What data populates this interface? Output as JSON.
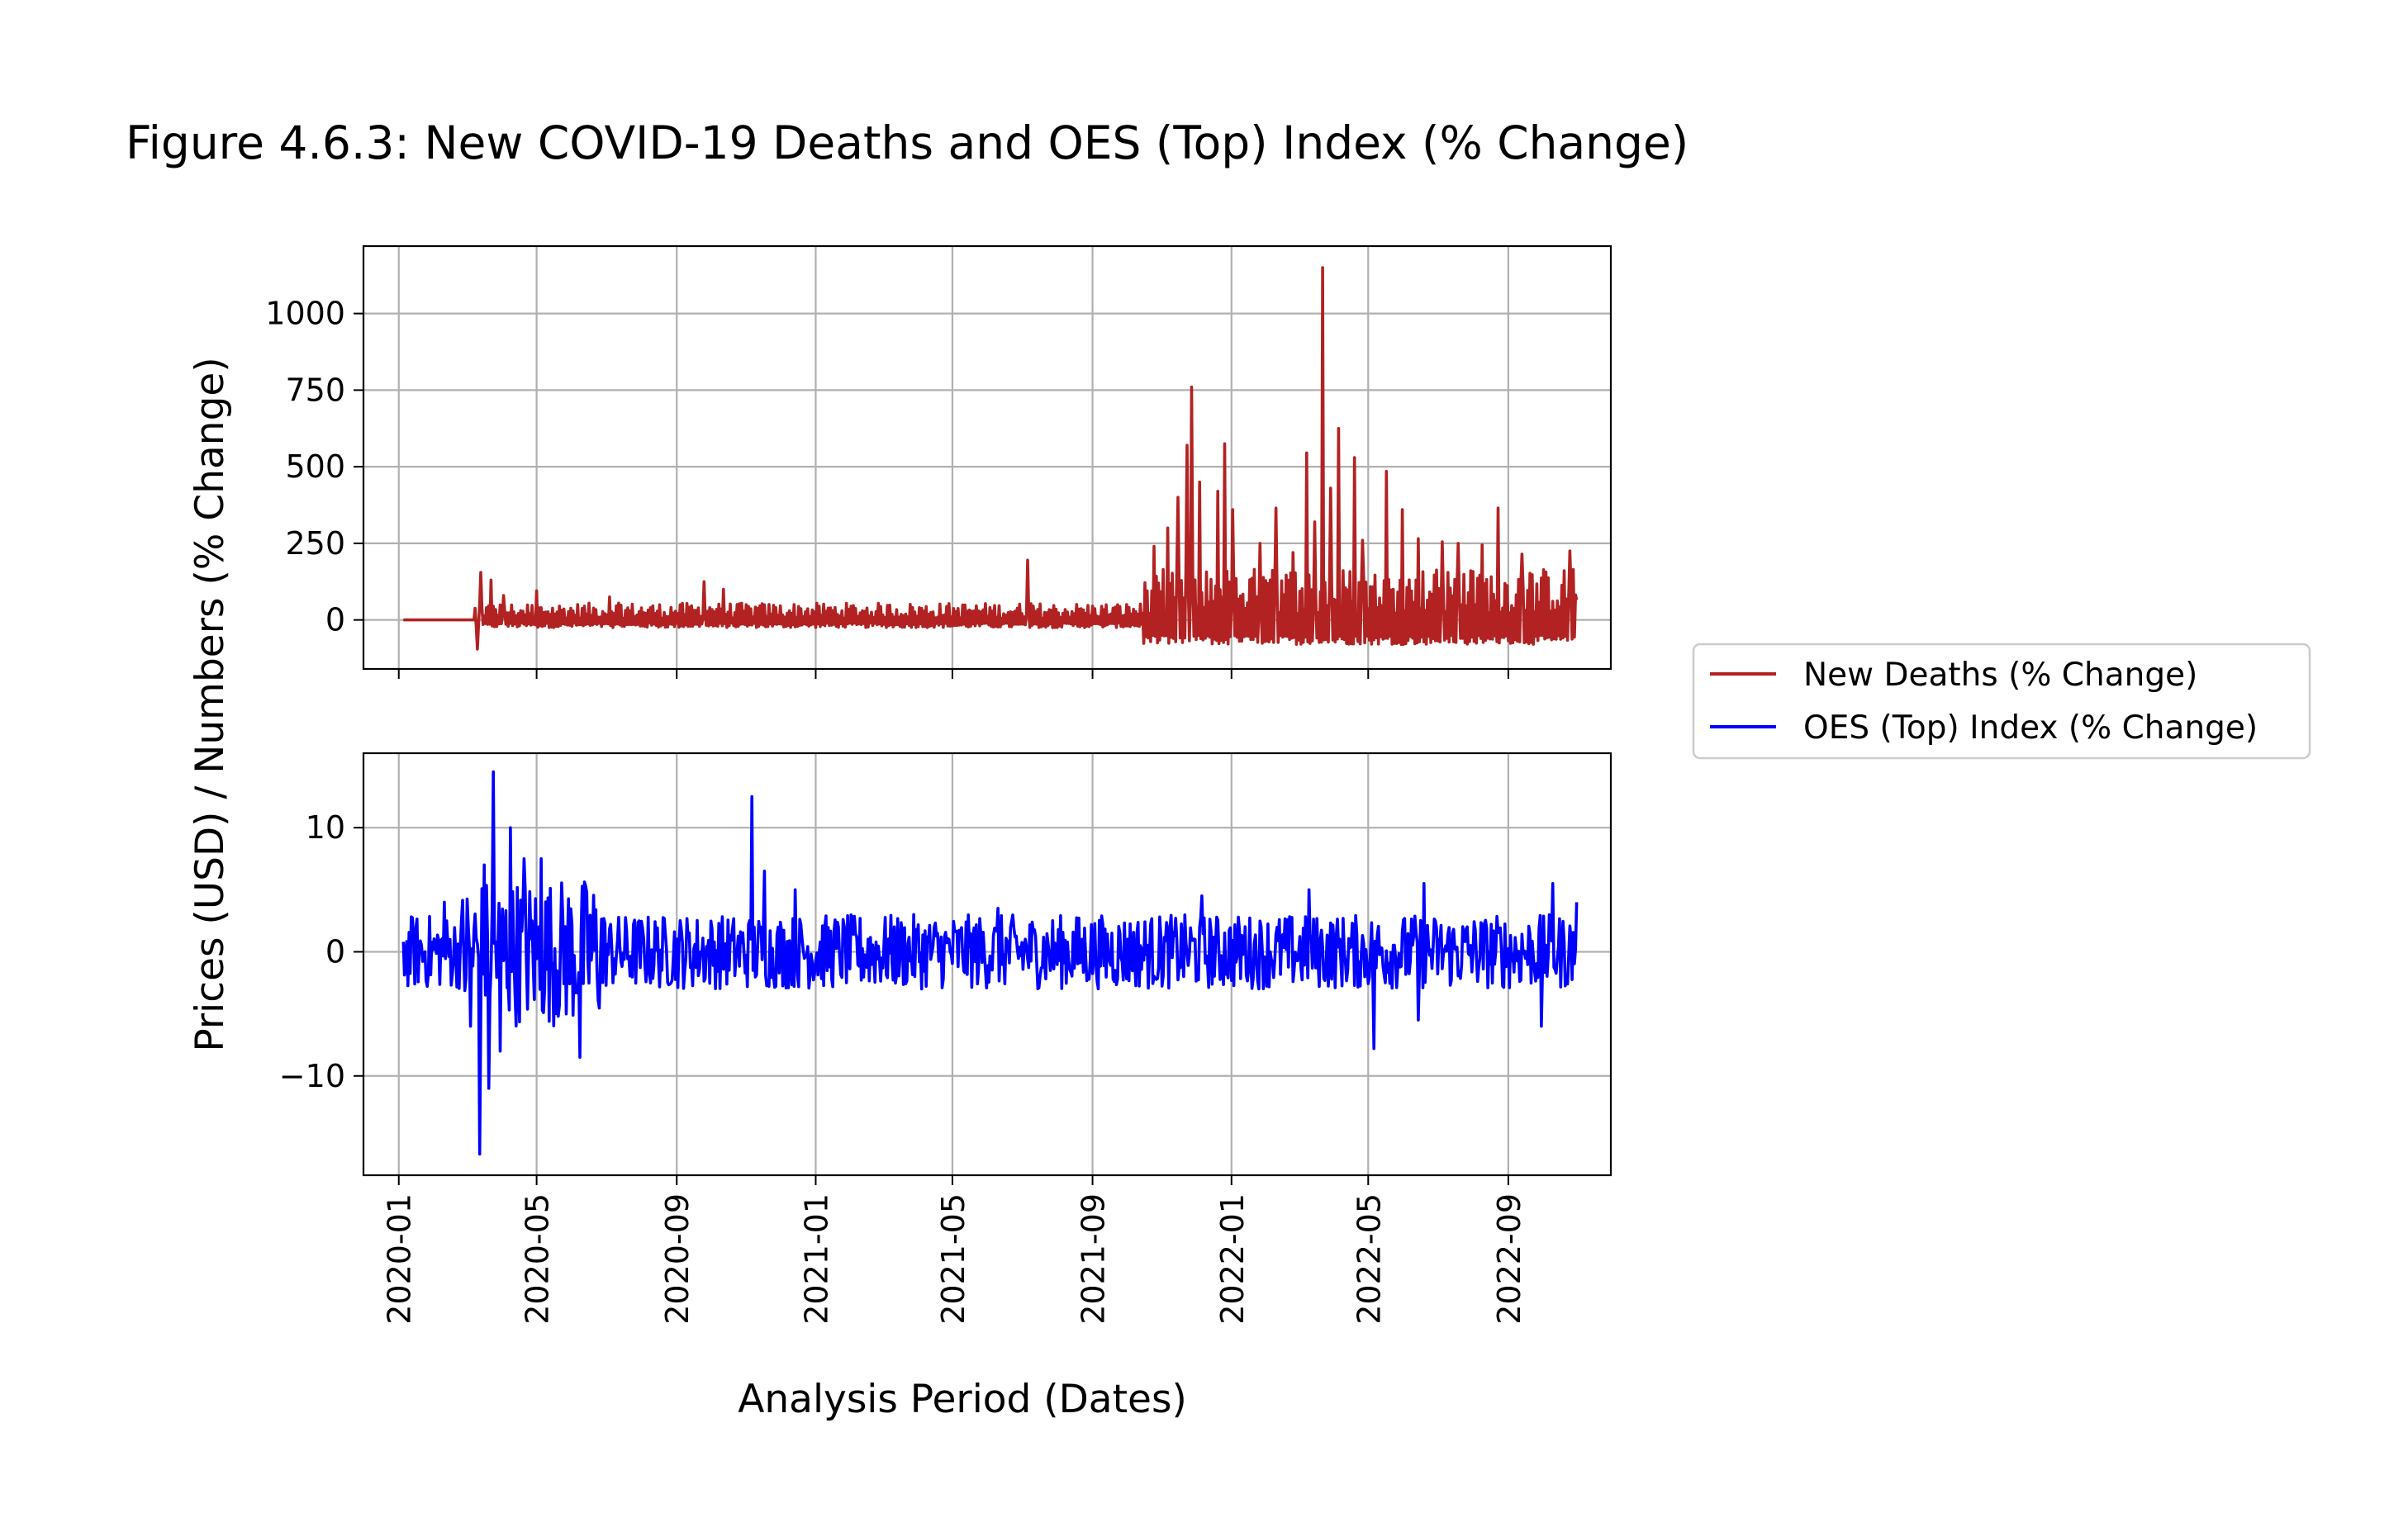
{
  "figure": {
    "title": "Figure 4.6.3: New COVID-19 Deaths and OES (Top) Index (% Change)",
    "xlabel": "Analysis Period (Dates)",
    "ylabel": "Prices (USD) / Numbers (% Change)"
  },
  "legend": {
    "placement": "right, centered between panels",
    "entries": [
      {
        "label": "New Deaths (% Change)",
        "color": "#b22222"
      },
      {
        "label": "OES (Top) Index (% Change)",
        "color": "#0000ff"
      }
    ]
  },
  "chart_data": [
    {
      "type": "line",
      "panel": "top",
      "series": [
        {
          "name": "New Deaths (% Change)",
          "color": "#b22222",
          "x_range": [
            "2020-01-05",
            "2022-10-31"
          ],
          "points": [
            [
              "2020-01-05",
              0
            ],
            [
              "2020-03-07",
              0
            ],
            [
              "2020-03-10",
              -95
            ],
            [
              "2020-03-13",
              155
            ],
            [
              "2020-03-18",
              40
            ],
            [
              "2020-03-22",
              130
            ],
            [
              "2020-04-02",
              80
            ],
            [
              "2020-05-01",
              95
            ],
            [
              "2020-07-04",
              75
            ],
            [
              "2020-09-25",
              125
            ],
            [
              "2020-10-12",
              100
            ],
            [
              "2021-07-06",
              195
            ],
            [
              "2021-10-25",
              240
            ],
            [
              "2021-11-06",
              300
            ],
            [
              "2021-11-15",
              400
            ],
            [
              "2021-11-23",
              570
            ],
            [
              "2021-11-27",
              760
            ],
            [
              "2021-12-04",
              450
            ],
            [
              "2021-12-20",
              420
            ],
            [
              "2021-12-26",
              575
            ],
            [
              "2022-01-02",
              360
            ],
            [
              "2022-01-26",
              250
            ],
            [
              "2022-02-09",
              365
            ],
            [
              "2022-02-24",
              220
            ],
            [
              "2022-03-08",
              545
            ],
            [
              "2022-03-15",
              320
            ],
            [
              "2022-03-22",
              1150
            ],
            [
              "2022-03-29",
              430
            ],
            [
              "2022-04-05",
              625
            ],
            [
              "2022-04-19",
              530
            ],
            [
              "2022-04-26",
              260
            ],
            [
              "2022-05-17",
              485
            ],
            [
              "2022-05-31",
              360
            ],
            [
              "2022-06-14",
              265
            ],
            [
              "2022-07-05",
              255
            ],
            [
              "2022-07-19",
              250
            ],
            [
              "2022-08-09",
              245
            ],
            [
              "2022-08-23",
              365
            ],
            [
              "2022-09-13",
              215
            ],
            [
              "2022-10-25",
              225
            ],
            [
              "2022-10-31",
              65
            ]
          ],
          "note_daily_oscillation": "values oscillate daily roughly between -20 and 40 through mid-2021, then between -90 and the listed peaks afterward"
        }
      ],
      "xlim": [
        "2019-12-01",
        "2022-11-30"
      ],
      "ylim": [
        -160,
        1220
      ],
      "yticks": [
        0,
        250,
        500,
        750,
        1000
      ],
      "ytick_labels": [
        "0",
        "250",
        "500",
        "750",
        "1000"
      ],
      "grid": true
    },
    {
      "type": "line",
      "panel": "bottom",
      "series": [
        {
          "name": "OES (Top) Index (% Change)",
          "color": "#0000ff",
          "x_range": [
            "2020-01-05",
            "2022-10-31"
          ],
          "points": [
            [
              "2020-01-05",
              0.8
            ],
            [
              "2020-02-10",
              4.0
            ],
            [
              "2020-03-04",
              -6.0
            ],
            [
              "2020-03-12",
              -16.3
            ],
            [
              "2020-03-16",
              7.0
            ],
            [
              "2020-03-20",
              -11.0
            ],
            [
              "2020-03-24",
              14.5
            ],
            [
              "2020-03-30",
              -8.0
            ],
            [
              "2020-04-08",
              10.0
            ],
            [
              "2020-04-20",
              7.5
            ],
            [
              "2020-05-05",
              7.5
            ],
            [
              "2020-06-08",
              -8.5
            ],
            [
              "2020-11-06",
              12.5
            ],
            [
              "2020-11-17",
              6.5
            ],
            [
              "2020-12-14",
              5.0
            ],
            [
              "2021-06-10",
              3.5
            ],
            [
              "2021-12-06",
              4.5
            ],
            [
              "2022-03-10",
              5.0
            ],
            [
              "2022-05-06",
              -7.8
            ],
            [
              "2022-06-14",
              -5.5
            ],
            [
              "2022-06-19",
              5.5
            ],
            [
              "2022-09-30",
              -6.0
            ],
            [
              "2022-10-10",
              5.5
            ],
            [
              "2022-10-31",
              4.0
            ]
          ],
          "note_daily_oscillation": "values oscillate daily roughly within ±3.5 outside the listed extremes"
        }
      ],
      "xlim": [
        "2019-12-01",
        "2022-11-30"
      ],
      "ylim": [
        -18,
        16
      ],
      "yticks": [
        -10,
        0,
        10
      ],
      "ytick_labels": [
        "−10",
        "0",
        "10"
      ],
      "grid": true
    }
  ],
  "xaxis": {
    "ticks": [
      "2020-01-01",
      "2020-05-01",
      "2020-09-01",
      "2021-01-01",
      "2021-05-01",
      "2021-09-01",
      "2022-01-01",
      "2022-05-01",
      "2022-09-01"
    ],
    "tick_labels": [
      "2020-01",
      "2020-05",
      "2020-09",
      "2021-01",
      "2021-05",
      "2021-09",
      "2022-01",
      "2022-05",
      "2022-09"
    ],
    "label_rotation": "vertical"
  }
}
